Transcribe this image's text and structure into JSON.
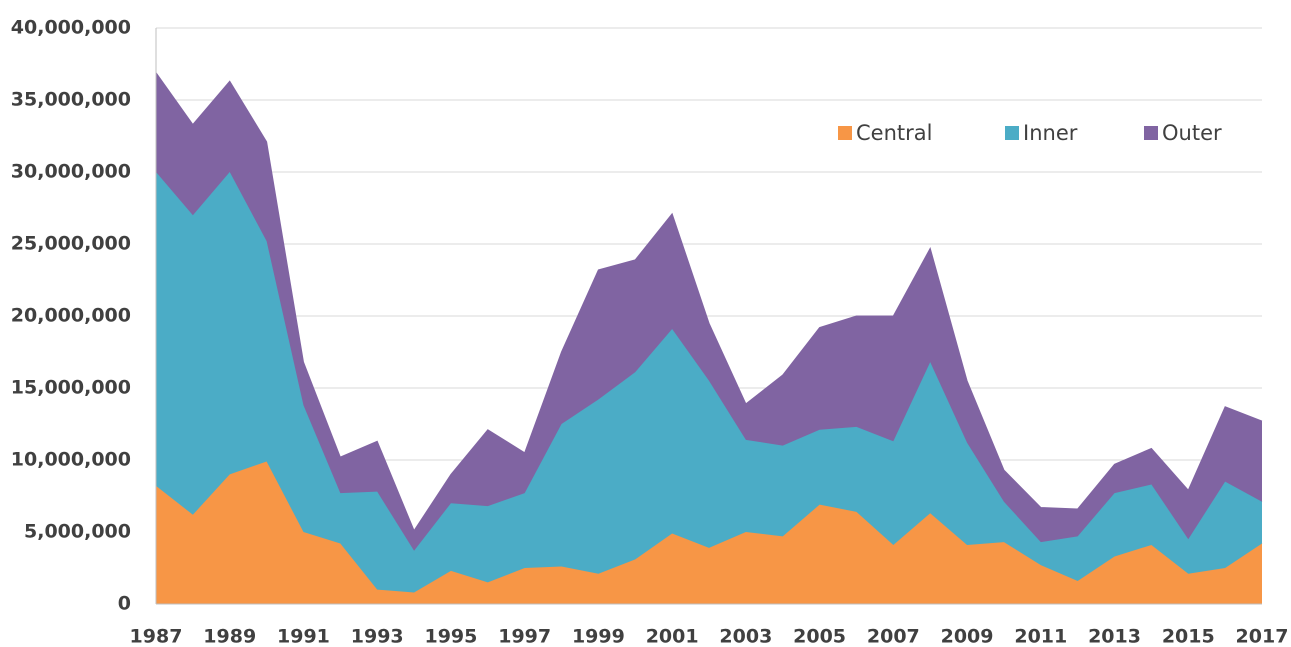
{
  "chart_data": {
    "type": "stacked_area",
    "x": [
      1987,
      1988,
      1989,
      1990,
      1991,
      1992,
      1993,
      1994,
      1995,
      1996,
      1997,
      1998,
      1999,
      2000,
      2001,
      2002,
      2003,
      2004,
      2005,
      2006,
      2007,
      2008,
      2009,
      2010,
      2011,
      2012,
      2013,
      2014,
      2015,
      2016,
      2017
    ],
    "series": [
      {
        "name": "Central",
        "color": "#f79646",
        "values": [
          8200000,
          6200000,
          9000000,
          9900000,
          5000000,
          4200000,
          1000000,
          800000,
          2300000,
          1500000,
          2500000,
          2600000,
          2100000,
          3100000,
          4900000,
          3900000,
          5000000,
          4700000,
          6900000,
          6400000,
          4100000,
          6300000,
          4100000,
          4300000,
          2700000,
          1600000,
          3300000,
          4100000,
          2100000,
          2500000,
          4200000
        ]
      },
      {
        "name": "Inner",
        "color": "#4bacc6",
        "values": [
          21800000,
          20800000,
          21000000,
          15300000,
          8800000,
          3500000,
          6800000,
          2900000,
          4700000,
          5300000,
          5200000,
          9900000,
          12100000,
          13000000,
          14200000,
          11600000,
          6400000,
          6300000,
          5200000,
          5900000,
          7200000,
          10500000,
          7100000,
          2800000,
          1600000,
          3100000,
          4400000,
          4200000,
          2400000,
          6000000,
          2900000
        ]
      },
      {
        "name": "Outer",
        "color": "#8064a2",
        "values": [
          6900000,
          6300000,
          6300000,
          6900000,
          3000000,
          2500000,
          3500000,
          1400000,
          2000000,
          5300000,
          2800000,
          5000000,
          9000000,
          7800000,
          8000000,
          4000000,
          2500000,
          4900000,
          7100000,
          7700000,
          8700000,
          7900000,
          4300000,
          2200000,
          2400000,
          1900000,
          2000000,
          2500000,
          3400000,
          5200000,
          5600000
        ]
      }
    ],
    "xlim": [
      1987,
      2017
    ],
    "xticks": [
      1987,
      1989,
      1991,
      1993,
      1995,
      1997,
      1999,
      2001,
      2003,
      2005,
      2007,
      2009,
      2011,
      2013,
      2015,
      2017
    ],
    "ylim": [
      0,
      40000000
    ],
    "yticks": [
      0,
      {
        "value": 5000000,
        "label": "5,000,000"
      },
      {
        "value": 10000000,
        "label": "10,000,000"
      },
      {
        "value": 15000000,
        "label": "15,000,000"
      },
      {
        "value": 20000000,
        "label": "20,000,000"
      },
      {
        "value": 25000000,
        "label": "25,000,000"
      },
      {
        "value": 30000000,
        "label": "30,000,000"
      },
      {
        "value": 35000000,
        "label": "35,000,000"
      },
      {
        "value": 40000000,
        "label": "40,000,000"
      }
    ],
    "grid": true,
    "legend": "top-right"
  }
}
